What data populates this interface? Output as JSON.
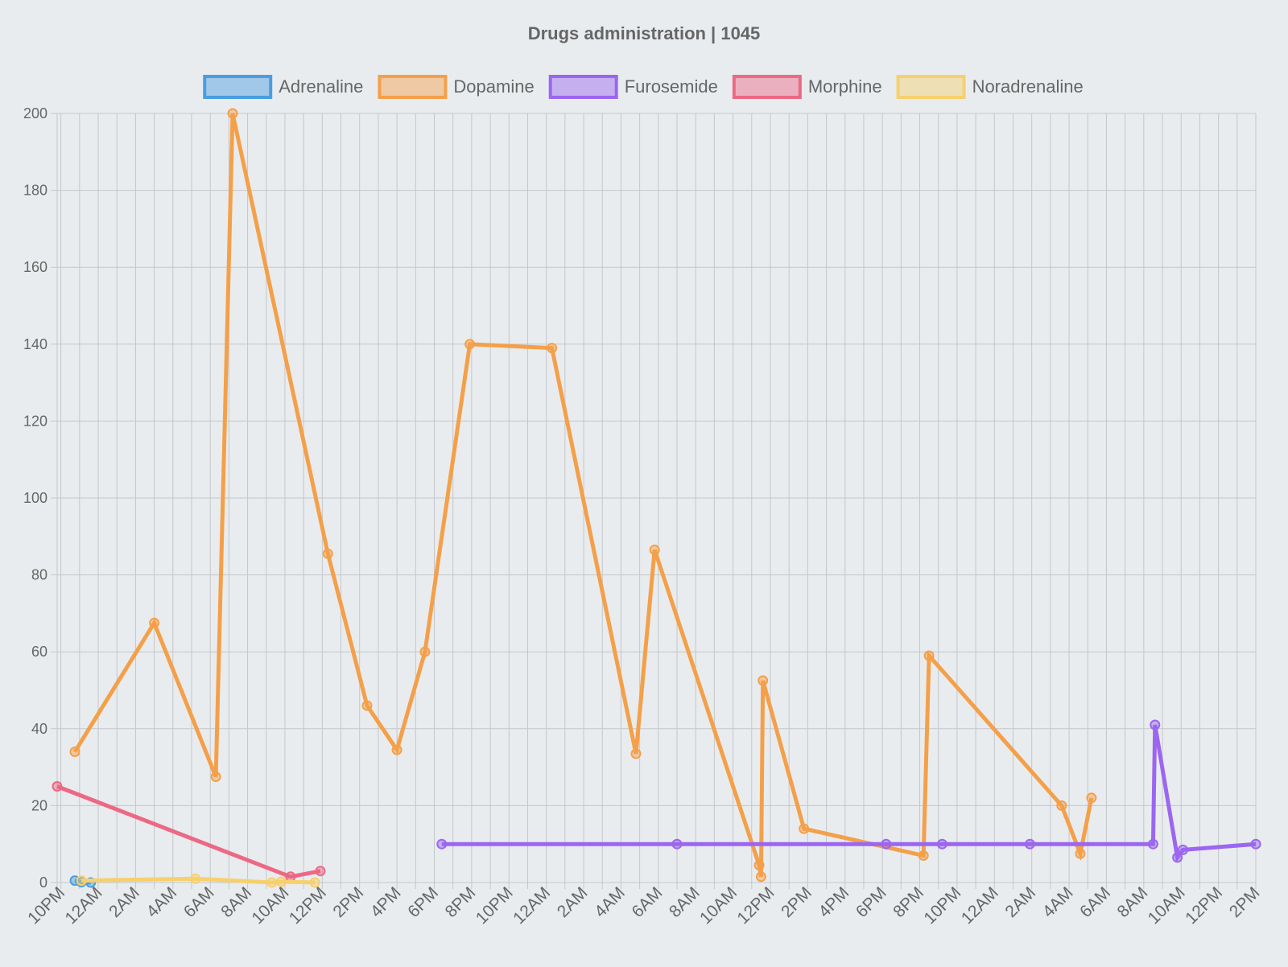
{
  "chart_data": {
    "type": "line",
    "title": "Drugs administration | 1045",
    "legend_position": "top",
    "grid": true,
    "ylim": [
      0,
      200
    ],
    "y_ticks": [
      0,
      20,
      40,
      60,
      80,
      100,
      120,
      140,
      160,
      180,
      200
    ],
    "x_tick_labels": [
      "10PM",
      "12AM",
      "2AM",
      "4AM",
      "6AM",
      "8AM",
      "10AM",
      "12PM",
      "2PM",
      "4PM",
      "6PM",
      "8PM",
      "10PM",
      "12AM",
      "2AM",
      "4AM",
      "6AM",
      "8AM",
      "10AM",
      "12PM",
      "2PM",
      "4PM",
      "6PM",
      "8PM",
      "10PM",
      "12AM",
      "2AM",
      "4AM",
      "6AM",
      "8AM",
      "10AM",
      "12PM",
      "2PM"
    ],
    "x_unit": "hours elapsed from first 10PM tick",
    "xlim": [
      -0.2,
      64
    ],
    "series": [
      {
        "name": "Adrenaline",
        "color": "#4a9de0",
        "points": [
          [
            0.75,
            0.5
          ],
          [
            1.1,
            0.1
          ],
          [
            1.6,
            0
          ]
        ]
      },
      {
        "name": "Dopamine",
        "color": "#f4a04a",
        "points": [
          [
            0.75,
            34
          ],
          [
            5.0,
            67.5
          ],
          [
            8.3,
            27.5
          ],
          [
            9.2,
            200
          ],
          [
            14.3,
            85.5
          ],
          [
            16.4,
            46
          ],
          [
            18.0,
            34.5
          ],
          [
            19.5,
            60
          ],
          [
            21.9,
            140
          ],
          [
            26.3,
            139
          ],
          [
            30.8,
            33.5
          ],
          [
            31.8,
            86.5
          ],
          [
            37.4,
            4.5
          ],
          [
            37.5,
            1.5
          ],
          [
            37.6,
            52.5
          ],
          [
            39.8,
            14
          ],
          [
            46.2,
            7
          ],
          [
            46.5,
            59
          ],
          [
            53.6,
            20
          ],
          [
            54.6,
            7.5
          ],
          [
            55.2,
            22
          ]
        ]
      },
      {
        "name": "Furosemide",
        "color": "#9b66f0",
        "points": [
          [
            20.4,
            10
          ],
          [
            33.0,
            10
          ],
          [
            44.2,
            10
          ],
          [
            47.2,
            10
          ],
          [
            51.9,
            10
          ],
          [
            58.5,
            10
          ],
          [
            58.6,
            41
          ],
          [
            59.8,
            6.5
          ],
          [
            60.1,
            8.5
          ],
          [
            64.0,
            10
          ]
        ]
      },
      {
        "name": "Morphine",
        "color": "#ec6985",
        "points": [
          [
            -0.2,
            25
          ],
          [
            12.3,
            1.5
          ],
          [
            13.9,
            3
          ]
        ]
      },
      {
        "name": "Noradrenaline",
        "color": "#f7d06e",
        "points": [
          [
            1.1,
            0.5
          ],
          [
            7.2,
            1
          ],
          [
            11.3,
            0
          ],
          [
            11.8,
            0.2
          ],
          [
            13.6,
            0
          ]
        ]
      }
    ]
  }
}
